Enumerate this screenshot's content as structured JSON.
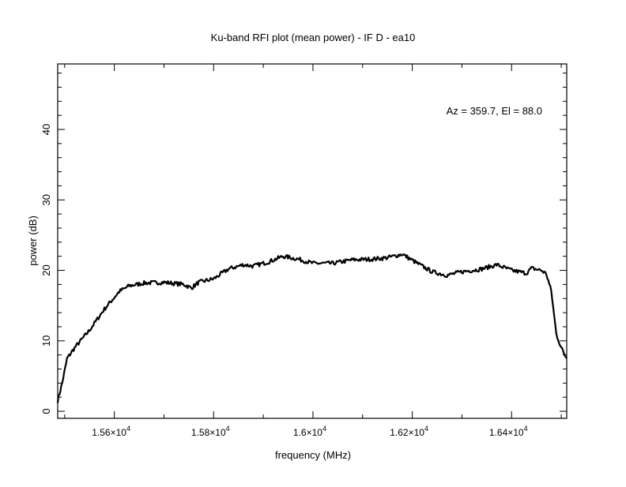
{
  "chart_data": {
    "type": "line",
    "title": "Ku-band RFI plot (mean power) - IF D - ea10",
    "xlabel": "frequency (MHz)",
    "ylabel": "power (dB)",
    "annotation": "Az = 359.7, El = 88.0",
    "xlim": [
      15486,
      16511
    ],
    "ylim": [
      -1,
      49.3
    ],
    "xticks": [
      15600,
      15800,
      16000,
      16200,
      16400
    ],
    "xtick_labels": [
      "1.56×10",
      "1.58×10",
      "1.6×10",
      "1.62×10",
      "1.64×10"
    ],
    "xtick_exponent": "4",
    "yticks": [
      0,
      10,
      20,
      30,
      40
    ],
    "ytick_labels": [
      "0",
      "10",
      "20",
      "30",
      "40"
    ],
    "grid": false,
    "series": [
      {
        "name": "mean power",
        "color": "#000000",
        "x": [
          15486,
          15495,
          15505,
          15520,
          15550,
          15580,
          15610,
          15630,
          15660,
          15700,
          15740,
          15755,
          15770,
          15800,
          15830,
          15860,
          15880,
          15910,
          15940,
          15970,
          16000,
          16040,
          16080,
          16120,
          16150,
          16180,
          16210,
          16240,
          16270,
          16300,
          16340,
          16370,
          16400,
          16430,
          16440,
          16460,
          16470,
          16480,
          16490,
          16500,
          16511
        ],
        "y": [
          1.5,
          4,
          7.5,
          9,
          11.5,
          14.5,
          17,
          17.8,
          18.2,
          18.3,
          18.0,
          17.5,
          18.3,
          18.8,
          20.2,
          20.8,
          20.6,
          21.2,
          22.0,
          21.6,
          21.0,
          21.0,
          21.5,
          21.6,
          21.8,
          22.3,
          21.0,
          19.8,
          19.3,
          19.8,
          20.2,
          20.8,
          20.0,
          19.6,
          20.3,
          20.0,
          19.5,
          17.0,
          11,
          9,
          7.5
        ]
      }
    ]
  }
}
